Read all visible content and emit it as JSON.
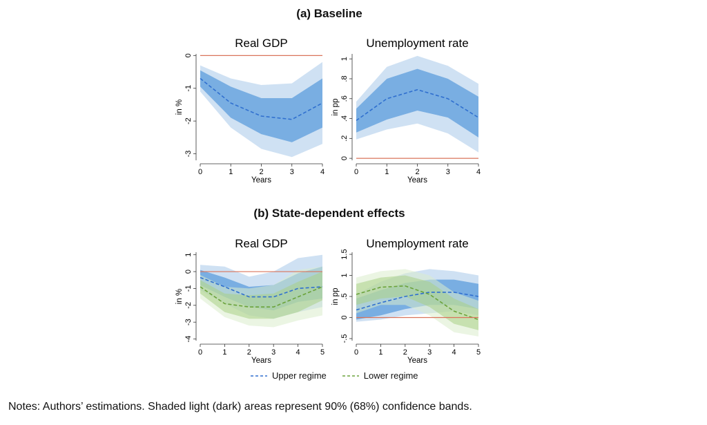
{
  "sections": {
    "a_title": "(a) Baseline",
    "b_title": "(b) State-dependent effects"
  },
  "notes": "Notes: Authors’ estimations. Shaded light (dark) areas represent 90% (68%) confidence bands.",
  "legend": {
    "upper": "Upper regime",
    "lower": "Lower regime"
  },
  "colors": {
    "upper_line": "#2f6fcf",
    "upper_dark": "#79aee2",
    "upper_light": "#cfe1f3",
    "lower_line": "#6aa23a",
    "lower_dark": "#a9cf86",
    "lower_light": "#dbeccc",
    "zero_line": "#d9735a"
  },
  "chart_data": [
    {
      "type": "line",
      "title": "Real GDP",
      "xlabel": "Years",
      "ylabel": "in %",
      "xlim": [
        0,
        4
      ],
      "ylim": [
        -3.2,
        0.05
      ],
      "x_ticks": [
        0,
        1,
        2,
        3,
        4
      ],
      "x_tick_labels": [
        "0",
        "1",
        "2",
        "3",
        "4"
      ],
      "y_ticks": [
        0,
        -1,
        -2,
        -3
      ],
      "y_tick_labels": [
        "0",
        "-1",
        "-2",
        "-3"
      ],
      "x": [
        0,
        1,
        2,
        3,
        4
      ],
      "series": [
        {
          "values": [
            -0.7,
            -1.45,
            -1.85,
            -1.95,
            -1.45
          ],
          "band68_lower": [
            -0.95,
            -1.9,
            -2.4,
            -2.65,
            -2.2
          ],
          "band68_upper": [
            -0.45,
            -0.95,
            -1.3,
            -1.3,
            -0.7
          ],
          "band90_lower": [
            -1.1,
            -2.2,
            -2.85,
            -3.1,
            -2.7
          ],
          "band90_upper": [
            -0.3,
            -0.7,
            -0.9,
            -0.85,
            -0.2
          ]
        }
      ]
    },
    {
      "type": "line",
      "title": "Unemployment rate",
      "xlabel": "Years",
      "ylabel": "in pp",
      "xlim": [
        0,
        4
      ],
      "ylim": [
        -0.02,
        1.05
      ],
      "x_ticks": [
        0,
        1,
        2,
        3,
        4
      ],
      "x_tick_labels": [
        "0",
        "1",
        "2",
        "3",
        "4"
      ],
      "y_ticks": [
        0,
        0.2,
        0.4,
        0.6,
        0.8,
        1
      ],
      "y_tick_labels": [
        "0",
        ".2",
        ".4",
        ".6",
        ".8",
        "1"
      ],
      "x": [
        0,
        1,
        2,
        3,
        4
      ],
      "series": [
        {
          "values": [
            0.38,
            0.6,
            0.69,
            0.6,
            0.41
          ],
          "band68_lower": [
            0.26,
            0.39,
            0.48,
            0.41,
            0.21
          ],
          "band68_upper": [
            0.5,
            0.8,
            0.9,
            0.8,
            0.62
          ],
          "band90_lower": [
            0.19,
            0.29,
            0.35,
            0.25,
            0.06
          ],
          "band90_upper": [
            0.57,
            0.92,
            1.03,
            0.93,
            0.75
          ]
        }
      ]
    },
    {
      "type": "line",
      "title": "Real GDP",
      "xlabel": "Years",
      "ylabel": "in %",
      "xlim": [
        0,
        5
      ],
      "ylim": [
        -4.1,
        1.15
      ],
      "x_ticks": [
        0,
        1,
        2,
        3,
        4,
        5
      ],
      "x_tick_labels": [
        "0",
        "1",
        "2",
        "3",
        "4",
        "5"
      ],
      "y_ticks": [
        1,
        0,
        -1,
        -2,
        -3,
        -4
      ],
      "y_tick_labels": [
        "1",
        "0",
        "-1",
        "-2",
        "-3",
        "-4"
      ],
      "x": [
        0,
        1,
        2,
        3,
        4,
        5
      ],
      "series": [
        {
          "name": "Upper regime",
          "values": [
            -0.35,
            -0.9,
            -1.5,
            -1.5,
            -1.0,
            -0.9
          ],
          "band68_lower": [
            -0.8,
            -1.5,
            -2.1,
            -2.3,
            -1.8,
            -1.6
          ],
          "band68_upper": [
            0.1,
            -0.35,
            -0.9,
            -0.8,
            -0.1,
            0.3
          ],
          "band90_lower": [
            -1.1,
            -1.9,
            -2.6,
            -2.8,
            -2.4,
            -2.1
          ],
          "band90_upper": [
            0.4,
            0.3,
            -0.3,
            0.0,
            0.8,
            1.0
          ]
        },
        {
          "name": "Lower regime",
          "values": [
            -0.9,
            -1.9,
            -2.1,
            -2.1,
            -1.5,
            -0.9
          ],
          "band68_lower": [
            -1.3,
            -2.4,
            -2.8,
            -2.8,
            -2.4,
            -1.7
          ],
          "band68_upper": [
            -0.5,
            -1.3,
            -1.4,
            -1.3,
            -0.6,
            0.0
          ],
          "band90_lower": [
            -1.6,
            -2.7,
            -3.2,
            -3.3,
            -2.9,
            -2.6
          ],
          "band90_upper": [
            -0.2,
            -0.9,
            -1.0,
            -0.8,
            0.1,
            0.3
          ]
        }
      ]
    },
    {
      "type": "line",
      "title": "Unemployment rate",
      "xlabel": "Years",
      "ylabel": "in pp",
      "xlim": [
        0,
        5
      ],
      "ylim": [
        -0.55,
        1.55
      ],
      "x_ticks": [
        0,
        1,
        2,
        3,
        4,
        5
      ],
      "x_tick_labels": [
        "0",
        "1",
        "2",
        "3",
        "4",
        "5"
      ],
      "y_ticks": [
        1.5,
        1,
        0.5,
        0,
        -0.5
      ],
      "y_tick_labels": [
        "1.5",
        "1",
        ".5",
        "0",
        "-.5"
      ],
      "x": [
        0,
        1,
        2,
        3,
        4,
        5
      ],
      "series": [
        {
          "name": "Upper regime",
          "values": [
            0.18,
            0.35,
            0.5,
            0.6,
            0.6,
            0.5
          ],
          "band68_lower": [
            -0.05,
            0.05,
            0.2,
            0.3,
            0.3,
            0.2
          ],
          "band68_upper": [
            0.45,
            0.65,
            0.82,
            0.9,
            0.9,
            0.8
          ],
          "band90_lower": [
            -0.1,
            -0.05,
            0.05,
            0.1,
            0.15,
            0.05
          ],
          "band90_upper": [
            0.55,
            0.85,
            1.05,
            1.15,
            1.1,
            1.0
          ]
        },
        {
          "name": "Lower regime",
          "values": [
            0.55,
            0.72,
            0.75,
            0.55,
            0.15,
            -0.05
          ],
          "band68_lower": [
            0.3,
            0.45,
            0.5,
            0.25,
            -0.15,
            -0.3
          ],
          "band68_upper": [
            0.8,
            0.95,
            1.0,
            0.85,
            0.45,
            0.2
          ],
          "band90_lower": [
            0.1,
            0.3,
            0.3,
            0.05,
            -0.35,
            -0.45
          ],
          "band90_upper": [
            0.95,
            1.1,
            1.15,
            1.0,
            0.6,
            0.4
          ]
        }
      ]
    }
  ]
}
